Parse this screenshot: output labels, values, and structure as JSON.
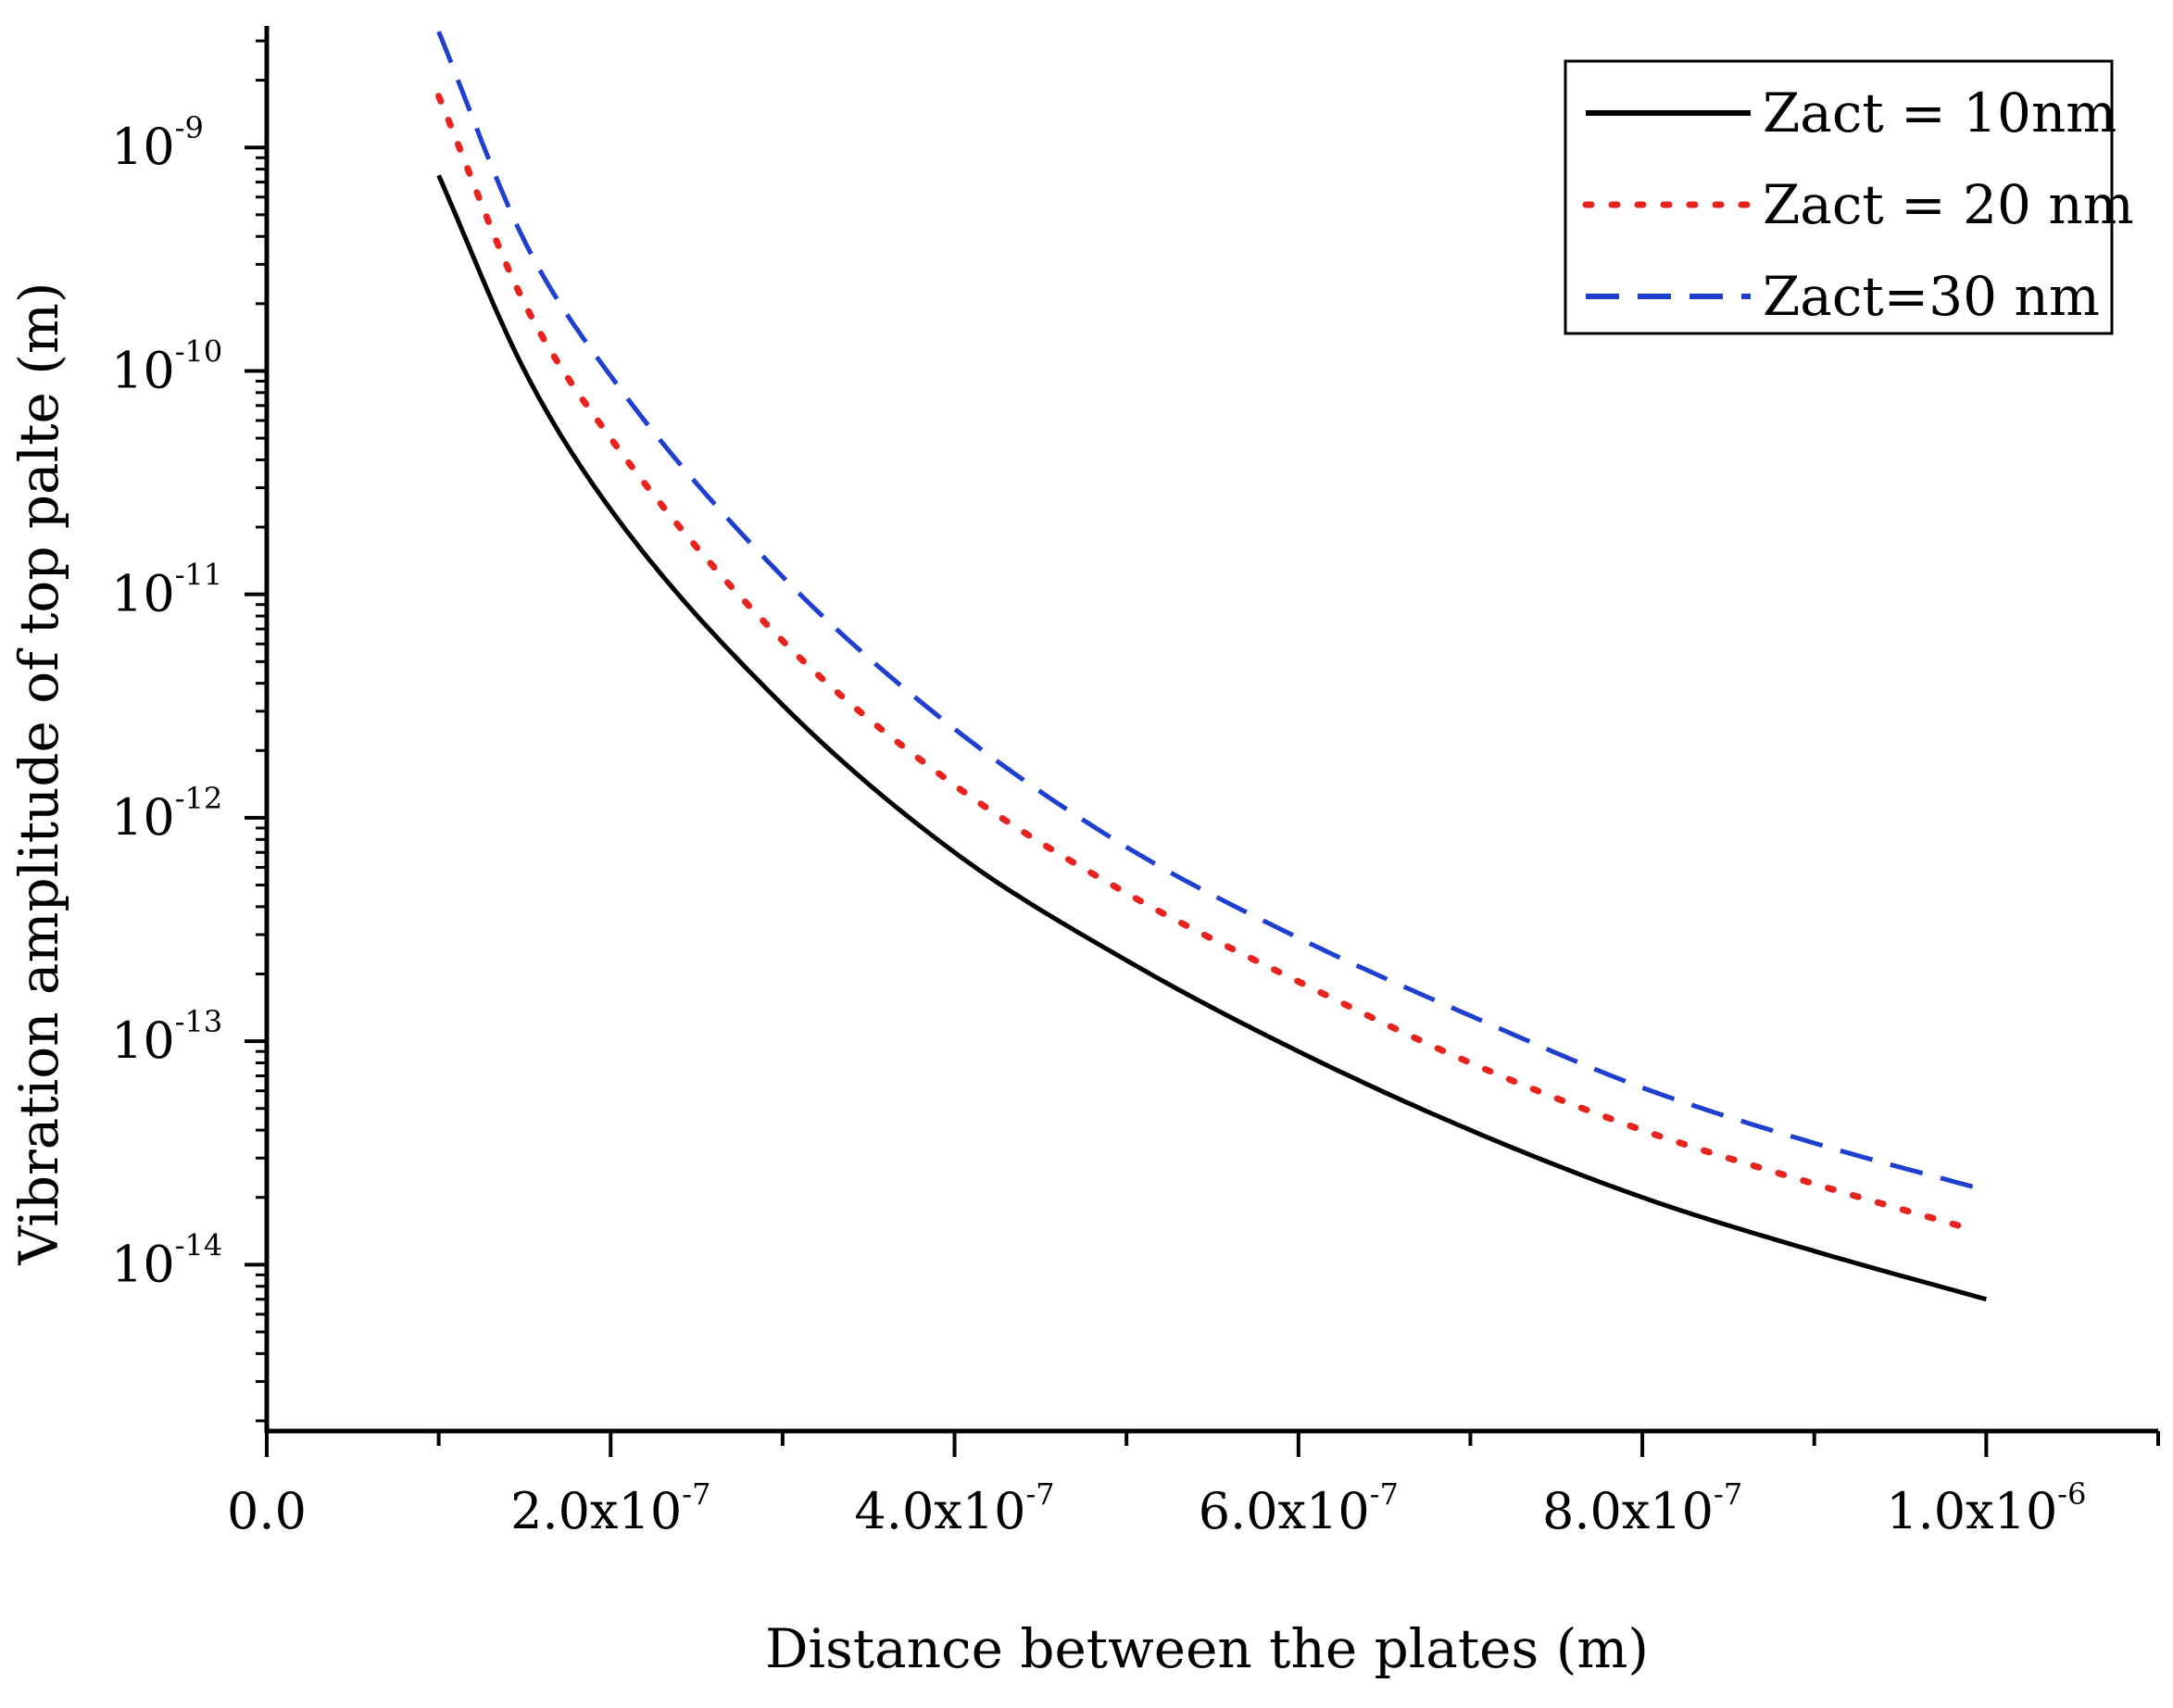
{
  "chart_data": {
    "type": "line",
    "title": "",
    "xlabel": "Distance between the plates (m)",
    "ylabel": "Vibration amplitude of top palte (m)",
    "x_scale": "linear",
    "y_scale": "log",
    "xlim": [
      0,
      1.1e-06
    ],
    "ylim": [
      1.8e-15,
      3.5e-09
    ],
    "x_ticks": [
      {
        "value": 0,
        "mantissa": "0.0",
        "exponent": ""
      },
      {
        "value": 2e-07,
        "mantissa": "2.0x10",
        "exponent": "-7"
      },
      {
        "value": 4e-07,
        "mantissa": "4.0x10",
        "exponent": "-7"
      },
      {
        "value": 6e-07,
        "mantissa": "6.0x10",
        "exponent": "-7"
      },
      {
        "value": 8e-07,
        "mantissa": "8.0x10",
        "exponent": "-7"
      },
      {
        "value": 1e-06,
        "mantissa": "1.0x10",
        "exponent": "-6"
      }
    ],
    "x_minor_ticks": [
      1e-07,
      3e-07,
      5e-07,
      7e-07,
      9e-07,
      1.1e-06
    ],
    "y_ticks": [
      {
        "value": 1e-09,
        "mantissa": "10",
        "exponent": "-9"
      },
      {
        "value": 1e-10,
        "mantissa": "10",
        "exponent": "-10"
      },
      {
        "value": 1e-11,
        "mantissa": "10",
        "exponent": "-11"
      },
      {
        "value": 1e-12,
        "mantissa": "10",
        "exponent": "-12"
      },
      {
        "value": 1e-13,
        "mantissa": "10",
        "exponent": "-13"
      },
      {
        "value": 1e-14,
        "mantissa": "10",
        "exponent": "-14"
      }
    ],
    "legend_position": "top-right",
    "series": [
      {
        "name": "Zact = 10nm",
        "color": "#000000",
        "style": "solid",
        "x": [
          1e-07,
          1.5e-07,
          2e-07,
          3e-07,
          4e-07,
          5e-07,
          6e-07,
          7e-07,
          8e-07,
          9e-07,
          1e-06
        ],
        "y": [
          7.5e-10,
          1e-10,
          2.4e-11,
          3.2e-12,
          7e-13,
          2.3e-13,
          9e-14,
          4e-14,
          2e-14,
          1.15e-14,
          7e-15
        ]
      },
      {
        "name": "Zact = 20 nm",
        "color": "#e8231d",
        "style": "dotted",
        "x": [
          1e-07,
          1.5e-07,
          2e-07,
          3e-07,
          4e-07,
          5e-07,
          6e-07,
          7e-07,
          8e-07,
          9e-07,
          9.9e-07
        ],
        "y": [
          1.7e-09,
          2e-10,
          5e-11,
          6.2e-12,
          1.4e-12,
          4.6e-13,
          1.85e-13,
          8e-14,
          4e-14,
          2.3e-14,
          1.45e-14
        ]
      },
      {
        "name": "Zact=30 nm",
        "color": "#1f3fd1",
        "style": "dashed",
        "x": [
          1e-07,
          1.5e-07,
          2e-07,
          3e-07,
          4e-07,
          5e-07,
          6e-07,
          7e-07,
          8e-07,
          9e-07,
          1e-06
        ],
        "y": [
          3.3e-09,
          3.8e-10,
          9.5e-11,
          1.2e-11,
          2.5e-12,
          7.4e-13,
          2.9e-13,
          1.3e-13,
          6.2e-14,
          3.5e-14,
          2.15e-14
        ]
      }
    ]
  }
}
